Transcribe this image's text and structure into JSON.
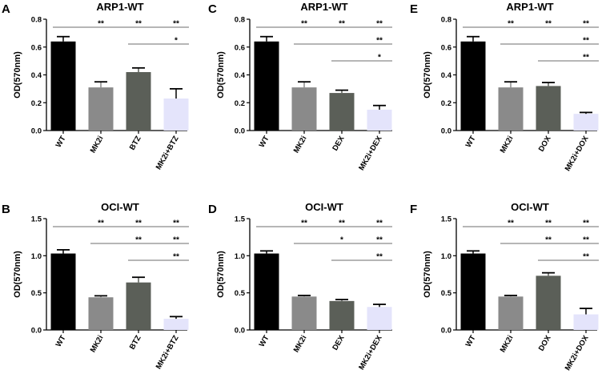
{
  "chart_data": [
    {
      "type": "bar",
      "panel_label": "A",
      "title": "ARP1-WT",
      "ylabel": "OD(570nm)",
      "xlabel": "",
      "ylim": [
        0,
        0.8
      ],
      "yticks": [
        "0.0",
        "0.2",
        "0.4",
        "0.6",
        "0.8"
      ],
      "ytick_values": [
        0,
        0.2,
        0.4,
        0.6,
        0.8
      ],
      "categories": [
        "WT",
        "MK2i",
        "BTZ",
        "MK2i+BTZ"
      ],
      "values": [
        0.64,
        0.31,
        0.42,
        0.23
      ],
      "errors": [
        0.035,
        0.04,
        0.03,
        0.07
      ],
      "significance": [
        {
          "from": 0,
          "to": 3,
          "marks": [
            "**",
            "**",
            "**"
          ],
          "level": 0
        },
        {
          "from": 2,
          "to": 3,
          "marks": [
            "*"
          ],
          "level": 1
        }
      ]
    },
    {
      "type": "bar",
      "panel_label": "C",
      "title": "ARP1-WT",
      "ylabel": "OD(570nm)",
      "xlabel": "",
      "ylim": [
        0,
        0.8
      ],
      "yticks": [
        "0.0",
        "0.2",
        "0.4",
        "0.6",
        "0.8"
      ],
      "ytick_values": [
        0,
        0.2,
        0.4,
        0.6,
        0.8
      ],
      "categories": [
        "WT",
        "MK2i",
        "DEX",
        "MK2i+DEX"
      ],
      "values": [
        0.64,
        0.31,
        0.27,
        0.15
      ],
      "errors": [
        0.035,
        0.04,
        0.02,
        0.03
      ],
      "significance": [
        {
          "from": 0,
          "to": 3,
          "marks": [
            "**",
            "**",
            "**"
          ],
          "level": 0
        },
        {
          "from": 1,
          "to": 3,
          "marks": [
            "**"
          ],
          "level": 1
        },
        {
          "from": 2,
          "to": 3,
          "marks": [
            "*"
          ],
          "level": 2
        }
      ]
    },
    {
      "type": "bar",
      "panel_label": "E",
      "title": "ARP1-WT",
      "ylabel": "OD(570nm)",
      "xlabel": "",
      "ylim": [
        0,
        0.8
      ],
      "yticks": [
        "0.0",
        "0.2",
        "0.4",
        "0.6",
        "0.8"
      ],
      "ytick_values": [
        0,
        0.2,
        0.4,
        0.6,
        0.8
      ],
      "categories": [
        "WT",
        "MK2i",
        "DOX",
        "MK2i+DOX"
      ],
      "values": [
        0.64,
        0.31,
        0.32,
        0.12
      ],
      "errors": [
        0.035,
        0.04,
        0.025,
        0.01
      ],
      "significance": [
        {
          "from": 0,
          "to": 3,
          "marks": [
            "**",
            "**",
            "**"
          ],
          "level": 0
        },
        {
          "from": 1,
          "to": 3,
          "marks": [
            "**"
          ],
          "level": 1
        },
        {
          "from": 2,
          "to": 3,
          "marks": [
            "**"
          ],
          "level": 2
        }
      ]
    },
    {
      "type": "bar",
      "panel_label": "B",
      "title": "OCI-WT",
      "ylabel": "OD(570nm)",
      "xlabel": "",
      "ylim": [
        0,
        1.5
      ],
      "yticks": [
        "0.0",
        "0.5",
        "1.0",
        "1.5"
      ],
      "ytick_values": [
        0,
        0.5,
        1.0,
        1.5
      ],
      "categories": [
        "WT",
        "MK2i",
        "BTZ",
        "MK2i+BTZ"
      ],
      "values": [
        1.03,
        0.44,
        0.64,
        0.15
      ],
      "errors": [
        0.05,
        0.02,
        0.07,
        0.03
      ],
      "significance": [
        {
          "from": 0,
          "to": 3,
          "marks": [
            "**",
            "**",
            "**"
          ],
          "level": 0
        },
        {
          "from": 1,
          "to": 3,
          "marks": [
            "**",
            "**"
          ],
          "level": 1
        },
        {
          "from": 2,
          "to": 3,
          "marks": [
            "**"
          ],
          "level": 2
        }
      ]
    },
    {
      "type": "bar",
      "panel_label": "D",
      "title": "OCI-WT",
      "ylabel": "OD(570nm)",
      "xlabel": "",
      "ylim": [
        0,
        1.5
      ],
      "yticks": [
        "0.0",
        "0.5",
        "1.0",
        "1.5"
      ],
      "ytick_values": [
        0,
        0.5,
        1.0,
        1.5
      ],
      "categories": [
        "WT",
        "MK2i",
        "DEX",
        "MK2i+DEX"
      ],
      "values": [
        1.03,
        0.45,
        0.39,
        0.31
      ],
      "errors": [
        0.035,
        0.015,
        0.02,
        0.035
      ],
      "significance": [
        {
          "from": 0,
          "to": 3,
          "marks": [
            "**",
            "**",
            "**"
          ],
          "level": 0
        },
        {
          "from": 1,
          "to": 3,
          "marks": [
            "*",
            "**"
          ],
          "level": 1
        },
        {
          "from": 2,
          "to": 3,
          "marks": [
            "**"
          ],
          "level": 2
        }
      ]
    },
    {
      "type": "bar",
      "panel_label": "F",
      "title": "OCI-WT",
      "ylabel": "OD(570nm)",
      "xlabel": "",
      "ylim": [
        0,
        1.5
      ],
      "yticks": [
        "0.0",
        "0.5",
        "1.0",
        "1.5"
      ],
      "ytick_values": [
        0,
        0.5,
        1.0,
        1.5
      ],
      "categories": [
        "WT",
        "MK2i",
        "DOX",
        "MK2i+DOX"
      ],
      "values": [
        1.03,
        0.45,
        0.73,
        0.21
      ],
      "errors": [
        0.035,
        0.015,
        0.04,
        0.08
      ],
      "significance": [
        {
          "from": 0,
          "to": 3,
          "marks": [
            "**",
            "**",
            "**"
          ],
          "level": 0
        },
        {
          "from": 1,
          "to": 3,
          "marks": [
            "**",
            "**"
          ],
          "level": 1
        },
        {
          "from": 2,
          "to": 3,
          "marks": [
            "**"
          ],
          "level": 2
        }
      ]
    }
  ],
  "colors": {
    "bars": [
      "#000000",
      "#8a8a8a",
      "#5b5f58",
      "#e4e4fb"
    ],
    "axis": "#000000",
    "significance_line": "#6e6e6e"
  }
}
